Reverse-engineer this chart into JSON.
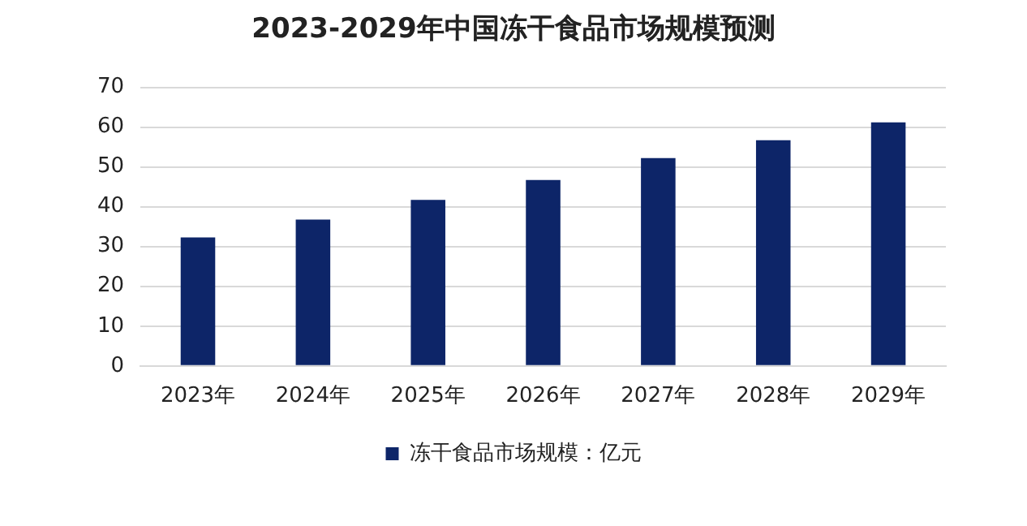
{
  "chart_data": {
    "type": "bar",
    "title": "2023-2029年中国冻干食品市场规模预测",
    "categories": [
      "2023年",
      "2024年",
      "2025年",
      "2026年",
      "2027年",
      "2028年",
      "2029年"
    ],
    "series": [
      {
        "name": "冻干食品市场规模：亿元",
        "color": "#0d2568",
        "values": [
          32.3,
          36.8,
          41.7,
          46.7,
          52.2,
          56.7,
          61.2
        ]
      }
    ],
    "ylim": [
      0,
      70
    ],
    "yticks": [
      0,
      10,
      20,
      30,
      40,
      50,
      60,
      70
    ],
    "grid": "y",
    "legend": "bottom"
  }
}
